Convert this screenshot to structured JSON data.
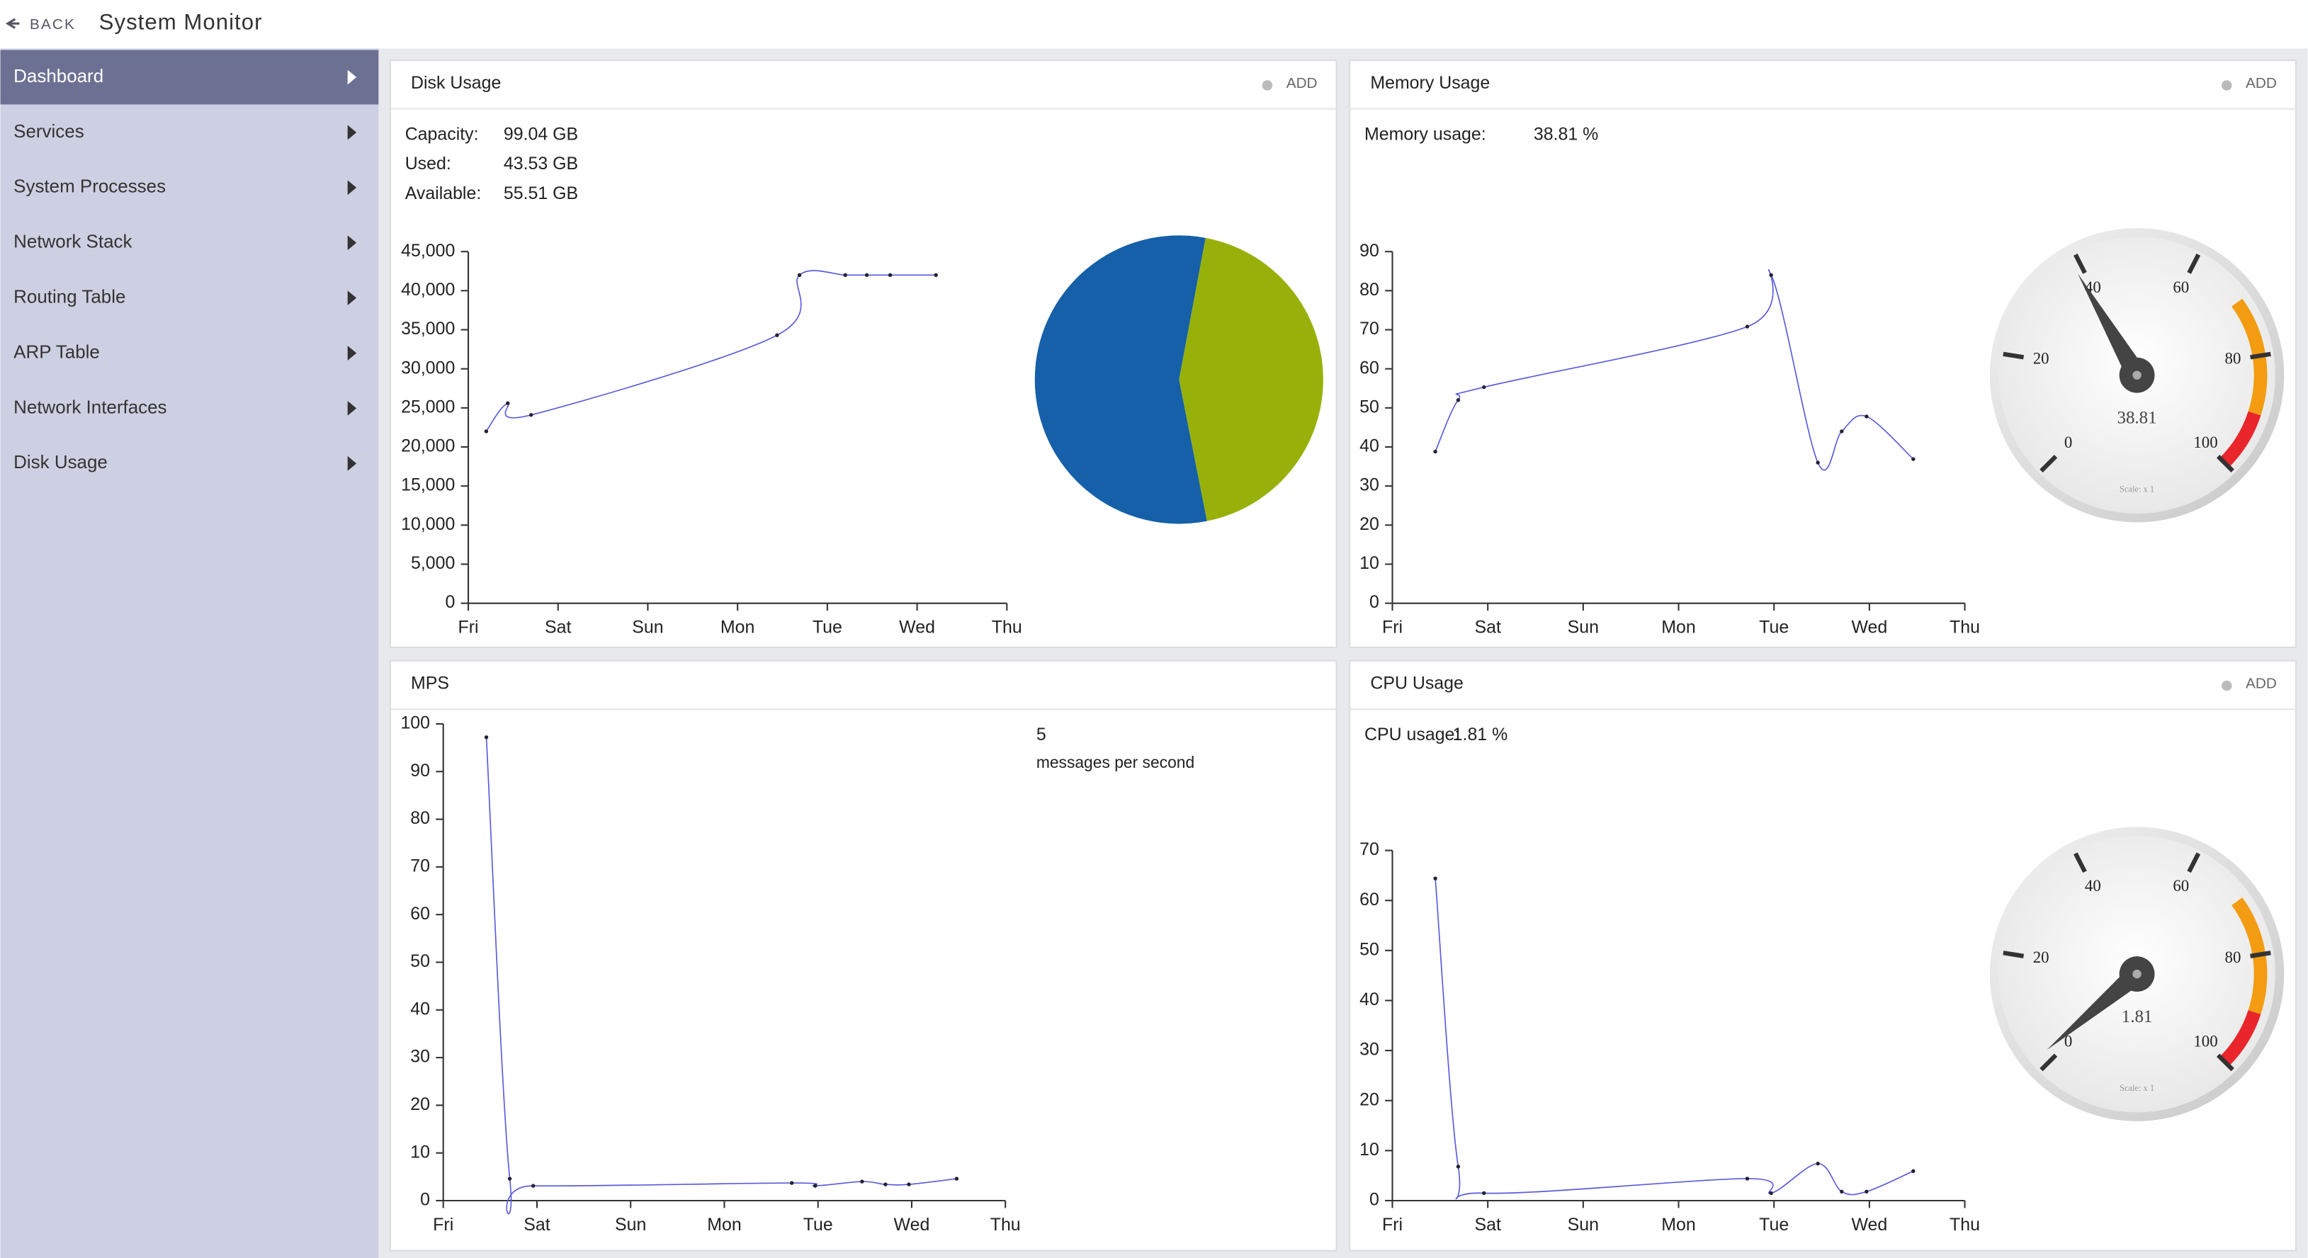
{
  "header": {
    "back": "BACK",
    "title": "System Monitor"
  },
  "sidebar": {
    "active": 0,
    "items": [
      "Dashboard",
      "Services",
      "System Processes",
      "Network Stack",
      "Routing Table",
      "ARP Table",
      "Network Interfaces",
      "Disk Usage"
    ]
  },
  "panels": [
    {
      "title": "Disk Usage",
      "action": "ADD",
      "stats": [
        {
          "label": "Capacity:",
          "value": "99.04 GB"
        },
        {
          "label": "Used:",
          "value": "43.53 GB"
        },
        {
          "label": "Available:",
          "value": "55.51 GB"
        }
      ]
    },
    {
      "title": "Memory Usage",
      "action": "ADD",
      "stats": [
        {
          "label": "Memory usage:",
          "value": "38.81 %"
        }
      ]
    },
    {
      "title": "MPS",
      "stats": [
        {
          "value": "5",
          "label": "messages per second"
        }
      ]
    },
    {
      "title": "CPU Usage",
      "action": "ADD",
      "stats": [
        {
          "label": "CPU usage:",
          "value": "1.81 %"
        }
      ]
    }
  ],
  "chart_data": [
    {
      "type": "line",
      "color": "#5b5bdb",
      "x": [
        0.2,
        0.44,
        0.7,
        3.44,
        3.69,
        4.2,
        4.44,
        4.7,
        5.21
      ],
      "values": [
        22000,
        25600,
        24100,
        34300,
        42000,
        42000,
        42000,
        42000,
        42000
      ],
      "xlim": [
        0,
        6
      ],
      "xticks": [
        {
          "value": 0,
          "label": "Fri"
        },
        {
          "value": 1,
          "label": "Sat"
        },
        {
          "value": 2,
          "label": "Sun"
        },
        {
          "value": 3,
          "label": "Mon"
        },
        {
          "value": 4,
          "label": "Tue"
        },
        {
          "value": 5,
          "label": "Wed"
        },
        {
          "value": 6,
          "label": "Thu"
        }
      ],
      "ylim": [
        0,
        45000
      ],
      "yticks": [
        0,
        {
          "value": 5000,
          "label": "5,000"
        },
        {
          "value": 10000,
          "label": "10,000"
        },
        {
          "value": 15000,
          "label": "15,000"
        },
        {
          "value": 20000,
          "label": "20,000"
        },
        {
          "value": 25000,
          "label": "25,000"
        },
        {
          "value": 30000,
          "label": "30,000"
        },
        {
          "value": 35000,
          "label": "35,000"
        },
        {
          "value": 40000,
          "label": "40,000"
        },
        {
          "value": 45000,
          "label": "45,000"
        }
      ]
    },
    {
      "type": "pie",
      "values": [
        43.53,
        55.51
      ],
      "colors": [
        "#97b10a",
        "#1560a8"
      ]
    },
    {
      "type": "line",
      "color": "#5b5bdb",
      "x": [
        0.45,
        0.69,
        0.96,
        3.72,
        3.97,
        4.46,
        4.71,
        4.97,
        5.46
      ],
      "values": [
        38.8,
        52,
        55.3,
        70.8,
        84,
        36,
        44,
        47.8,
        36.9
      ],
      "xlim": [
        0,
        6
      ],
      "xticks": [
        {
          "value": 0,
          "label": "Fri"
        },
        {
          "value": 1,
          "label": "Sat"
        },
        {
          "value": 2,
          "label": "Sun"
        },
        {
          "value": 3,
          "label": "Mon"
        },
        {
          "value": 4,
          "label": "Tue"
        },
        {
          "value": 5,
          "label": "Wed"
        },
        {
          "value": 6,
          "label": "Thu"
        }
      ],
      "ylim": [
        0,
        90
      ],
      "yticks": [
        0,
        10,
        20,
        30,
        40,
        50,
        60,
        70,
        80,
        90
      ]
    },
    {
      "type": "gauge",
      "value": 38.81,
      "lim": [
        0,
        100
      ],
      "ticks": [
        0,
        20,
        40,
        60,
        80,
        100
      ],
      "scale_label": "Scale: x 1",
      "bands": [
        {
          "from": 70,
          "to": 90,
          "color": "#f39c12"
        },
        {
          "from": 90,
          "to": 100,
          "color": "#e8262b"
        }
      ]
    },
    {
      "type": "line",
      "color": "#5b5bdb",
      "x": [
        0.46,
        0.71,
        0.96,
        3.72,
        3.97,
        4.47,
        4.72,
        4.97,
        5.48
      ],
      "values": [
        97.2,
        4.6,
        3.1,
        3.7,
        3.1,
        4,
        3.4,
        3.4,
        4.6
      ],
      "xlim": [
        0,
        6
      ],
      "xticks": [
        {
          "value": 0,
          "label": "Fri"
        },
        {
          "value": 1,
          "label": "Sat"
        },
        {
          "value": 2,
          "label": "Sun"
        },
        {
          "value": 3,
          "label": "Mon"
        },
        {
          "value": 4,
          "label": "Tue"
        },
        {
          "value": 5,
          "label": "Wed"
        },
        {
          "value": 6,
          "label": "Thu"
        }
      ],
      "ylim": [
        0,
        100
      ],
      "yticks": [
        0,
        10,
        20,
        30,
        40,
        50,
        60,
        70,
        80,
        90,
        100
      ]
    },
    {
      "type": "line",
      "color": "#5b5bdb",
      "x": [
        0.45,
        0.69,
        0.96,
        3.72,
        3.97,
        4.46,
        4.71,
        4.97,
        5.46
      ],
      "values": [
        64.4,
        6.8,
        1.5,
        4.4,
        1.5,
        7.4,
        1.8,
        1.8,
        5.9
      ],
      "xlim": [
        0,
        6
      ],
      "xticks": [
        {
          "value": 0,
          "label": "Fri"
        },
        {
          "value": 1,
          "label": "Sat"
        },
        {
          "value": 2,
          "label": "Sun"
        },
        {
          "value": 3,
          "label": "Mon"
        },
        {
          "value": 4,
          "label": "Tue"
        },
        {
          "value": 5,
          "label": "Wed"
        },
        {
          "value": 6,
          "label": "Thu"
        }
      ],
      "ylim": [
        0,
        70
      ],
      "yticks": [
        0,
        10,
        20,
        30,
        40,
        50,
        60,
        70
      ]
    },
    {
      "type": "gauge",
      "value": 1.81,
      "lim": [
        0,
        100
      ],
      "ticks": [
        0,
        20,
        40,
        60,
        80,
        100
      ],
      "scale_label": "Scale: x 1",
      "bands": [
        {
          "from": 70,
          "to": 90,
          "color": "#f39c12"
        },
        {
          "from": 90,
          "to": 100,
          "color": "#e8262b"
        }
      ]
    }
  ]
}
